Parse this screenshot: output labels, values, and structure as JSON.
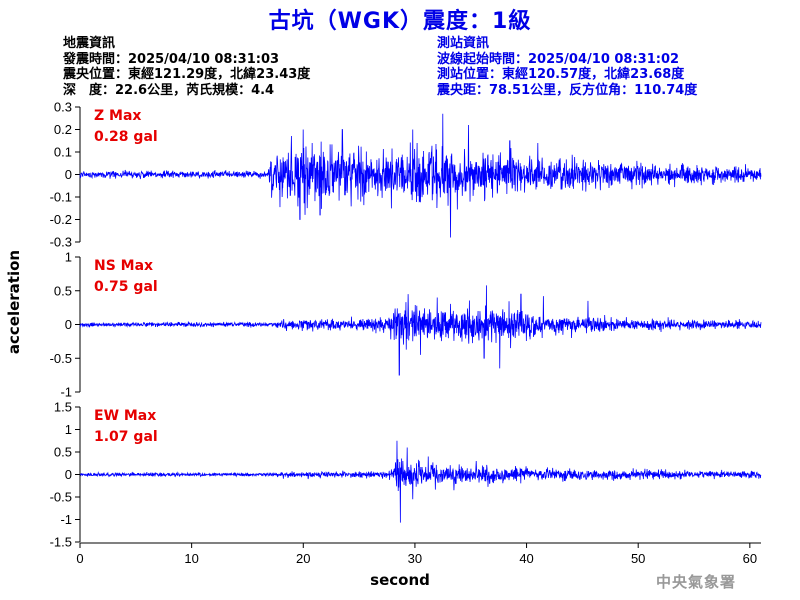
{
  "title": "古坑（WGK）震度：1級",
  "earthquake_info": {
    "heading": "地震資訊",
    "time": "發震時間：2025/04/10 08:31:03",
    "location": "震央位置：東經121.29度，北緯23.43度",
    "depth_magnitude": "深　度：22.6公里，芮氏規模：4.4"
  },
  "station_info": {
    "heading": "測站資訊",
    "wave_start": "波線起始時間：2025/04/10 08:31:02",
    "location": "測站位置：東經120.57度，北緯23.68度",
    "distance": "震央距：78.51公里，反方位角：110.74度"
  },
  "axis": {
    "ylabel": "acceleration",
    "xlabel": "second"
  },
  "credit": "中央氣象署",
  "colors": {
    "title": "#0000e6",
    "trace": "#0000ff",
    "max_label": "#e60000",
    "credit": "#999999"
  },
  "chart_data": [
    {
      "type": "line",
      "name": "Z",
      "max_label": "Z Max",
      "max_value": "0.28 gal",
      "ylim": [
        -0.3,
        0.3
      ],
      "yticks": [
        -0.3,
        -0.2,
        -0.1,
        0,
        0.1,
        0.2,
        0.3
      ],
      "ytick_labels": [
        "-0.3",
        "-0.2",
        "-0.1",
        "0",
        "0.1",
        "0.2",
        "0.3"
      ],
      "xlim": [
        0,
        61
      ],
      "noise": 0.012,
      "envelope": [
        [
          0,
          1
        ],
        [
          16.8,
          1
        ],
        [
          17.2,
          7
        ],
        [
          19.5,
          9
        ],
        [
          22,
          8
        ],
        [
          26,
          7
        ],
        [
          32,
          8
        ],
        [
          35,
          7
        ],
        [
          40,
          5
        ],
        [
          45,
          4
        ],
        [
          50,
          3.2
        ],
        [
          55,
          2.6
        ],
        [
          61,
          2.2
        ]
      ],
      "peaks": [
        [
          19.7,
          -0.2
        ],
        [
          20.8,
          0.14
        ],
        [
          21.5,
          -0.18
        ],
        [
          23.5,
          0.2
        ],
        [
          29.8,
          0.2
        ],
        [
          32.5,
          0.27
        ],
        [
          33.2,
          -0.28
        ],
        [
          34.8,
          0.22
        ],
        [
          38.5,
          0.15
        ],
        [
          41,
          0.14
        ],
        [
          20.0,
          0.2
        ]
      ]
    },
    {
      "type": "line",
      "name": "NS",
      "max_label": "NS Max",
      "max_value": "0.75 gal",
      "ylim": [
        -1,
        1
      ],
      "yticks": [
        -1,
        -0.5,
        0,
        0.5,
        1
      ],
      "ytick_labels": [
        "-1",
        "-0.5",
        "0",
        "0.5",
        "1"
      ],
      "xlim": [
        0,
        61
      ],
      "noise": 0.025,
      "envelope": [
        [
          0,
          1
        ],
        [
          17,
          1
        ],
        [
          18,
          2.2
        ],
        [
          24,
          2.5
        ],
        [
          27.5,
          3
        ],
        [
          28.4,
          11
        ],
        [
          31,
          9
        ],
        [
          34,
          8
        ],
        [
          36,
          9
        ],
        [
          38,
          8
        ],
        [
          42,
          5
        ],
        [
          46,
          3.5
        ],
        [
          50,
          2.6
        ],
        [
          55,
          2
        ],
        [
          61,
          1.8
        ]
      ],
      "peaks": [
        [
          28.6,
          -0.75
        ],
        [
          29.4,
          0.45
        ],
        [
          30.5,
          -0.45
        ],
        [
          32.0,
          0.4
        ],
        [
          36.4,
          0.58
        ],
        [
          37.6,
          -0.65
        ],
        [
          39.5,
          0.45
        ],
        [
          41.5,
          0.42
        ],
        [
          45.5,
          0.35
        ],
        [
          36.2,
          -0.5
        ]
      ]
    },
    {
      "type": "line",
      "name": "EW",
      "max_label": "EW Max",
      "max_value": "1.07 gal",
      "ylim": [
        -1.5,
        1.5
      ],
      "yticks": [
        -1.5,
        -1,
        -0.5,
        0,
        0.5,
        1,
        1.5
      ],
      "ytick_labels": [
        "-1.5",
        "-1",
        "-0.5",
        "0",
        "0.5",
        "1",
        "1.5"
      ],
      "xlim": [
        0,
        61
      ],
      "xticks": [
        0,
        10,
        20,
        30,
        40,
        50,
        60
      ],
      "xtick_labels": [
        "0",
        "10",
        "20",
        "30",
        "40",
        "50",
        "60"
      ],
      "noise": 0.03,
      "envelope": [
        [
          0,
          1
        ],
        [
          17,
          1
        ],
        [
          18,
          1.6
        ],
        [
          27,
          2
        ],
        [
          28,
          3
        ],
        [
          28.4,
          12
        ],
        [
          30,
          7
        ],
        [
          33,
          6
        ],
        [
          36,
          5.5
        ],
        [
          40,
          4
        ],
        [
          45,
          3
        ],
        [
          50,
          2.6
        ],
        [
          55,
          2.2
        ],
        [
          61,
          2
        ]
      ],
      "peaks": [
        [
          28.4,
          0.75
        ],
        [
          28.7,
          -1.07
        ],
        [
          29.3,
          0.6
        ],
        [
          29.8,
          -0.55
        ],
        [
          31.2,
          0.4
        ],
        [
          33.5,
          -0.35
        ],
        [
          35.5,
          0.3
        ]
      ]
    }
  ]
}
